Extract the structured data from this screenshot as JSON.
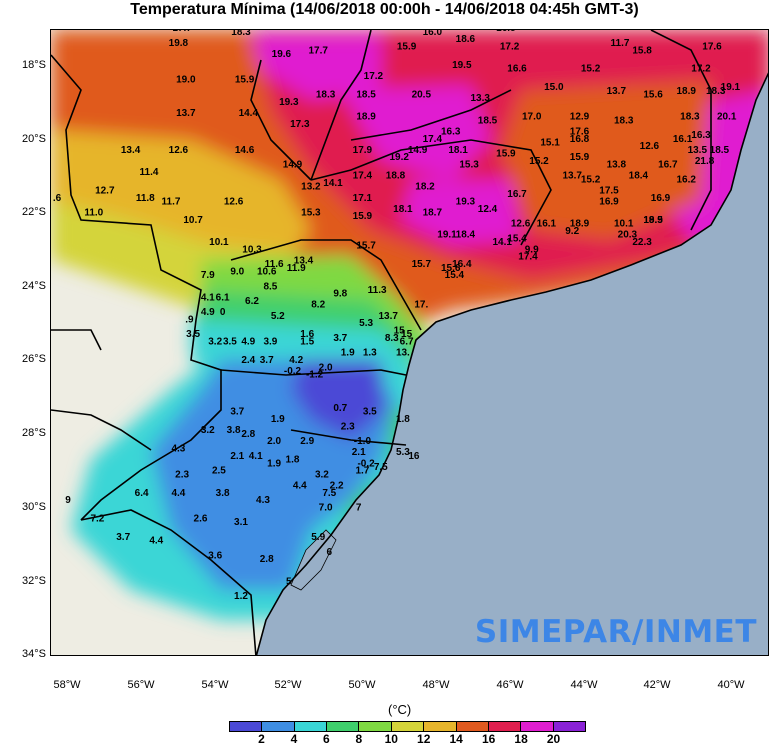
{
  "title": "Temperatura Mínima (14/06/2018 00:00h - 14/06/2018 04:45h GMT-3)",
  "watermark": "SIMEPAR/INMET",
  "unit_label": "(°C)",
  "lat_labels": [
    "18°S",
    "20°S",
    "22°S",
    "24°S",
    "26°S",
    "28°S",
    "30°S",
    "32°S",
    "34°S"
  ],
  "lon_labels": [
    "58°W",
    "56°W",
    "54°W",
    "52°W",
    "50°W",
    "48°W",
    "46°W",
    "44°W",
    "42°W",
    "40°W"
  ],
  "colorbar": {
    "colors": [
      "#4b49d6",
      "#3f8ee3",
      "#3ad6d6",
      "#3fcf6c",
      "#7fd942",
      "#d4d43a",
      "#e6b52c",
      "#e05a1f",
      "#e01f4f",
      "#e01ed0",
      "#8a22d6"
    ],
    "labels": [
      "2",
      "4",
      "6",
      "8",
      "10",
      "12",
      "14",
      "16",
      "18",
      "20"
    ]
  },
  "colors": {
    "ocean": "#98afc7",
    "land": "#eeede3",
    "lake": "#98afc7"
  },
  "observations": [
    {
      "v": "17.7",
      "lon": -54.9,
      "lat": -17.0
    },
    {
      "v": "18.3",
      "lon": -53.3,
      "lat": -17.1
    },
    {
      "v": "16.0",
      "lon": -48.1,
      "lat": -17.1
    },
    {
      "v": "16.8",
      "lon": -46.1,
      "lat": -17.0
    },
    {
      "v": "19.8",
      "lon": -55.0,
      "lat": -17.4
    },
    {
      "v": "18.6",
      "lon": -47.2,
      "lat": -17.3
    },
    {
      "v": "15.9",
      "lon": -48.8,
      "lat": -17.5
    },
    {
      "v": "17.7",
      "lon": -51.2,
      "lat": -17.6
    },
    {
      "v": "19.6",
      "lon": -52.2,
      "lat": -17.7
    },
    {
      "v": "17.2",
      "lon": -46.0,
      "lat": -17.5
    },
    {
      "v": "11.7",
      "lon": -43.0,
      "lat": -17.4
    },
    {
      "v": "15.8",
      "lon": -42.4,
      "lat": -17.6
    },
    {
      "v": "17.6",
      "lon": -40.5,
      "lat": -17.5
    },
    {
      "v": "19.5",
      "lon": -47.3,
      "lat": -18.0
    },
    {
      "v": "16.6",
      "lon": -45.8,
      "lat": -18.1
    },
    {
      "v": "15.2",
      "lon": -43.8,
      "lat": -18.1
    },
    {
      "v": "17.2",
      "lon": -40.8,
      "lat": -18.1
    },
    {
      "v": "19.0",
      "lon": -54.8,
      "lat": -18.4
    },
    {
      "v": "15.9",
      "lon": -53.2,
      "lat": -18.4
    },
    {
      "v": "17.2",
      "lon": -49.7,
      "lat": -18.3
    },
    {
      "v": "15.0",
      "lon": -44.8,
      "lat": -18.6
    },
    {
      "v": "13.7",
      "lon": -43.1,
      "lat": -18.7
    },
    {
      "v": "15.6",
      "lon": -42.1,
      "lat": -18.8
    },
    {
      "v": "18.9",
      "lon": -41.2,
      "lat": -18.7
    },
    {
      "v": "18.3",
      "lon": -40.4,
      "lat": -18.7
    },
    {
      "v": "19.1",
      "lon": -40.0,
      "lat": -18.6
    },
    {
      "v": "18.3",
      "lon": -51.0,
      "lat": -18.8
    },
    {
      "v": "18.5",
      "lon": -49.9,
      "lat": -18.8
    },
    {
      "v": "20.5",
      "lon": -48.4,
      "lat": -18.8
    },
    {
      "v": "13.3",
      "lon": -46.8,
      "lat": -18.9
    },
    {
      "v": "19.3",
      "lon": -52.0,
      "lat": -19.0
    },
    {
      "v": "13.7",
      "lon": -54.8,
      "lat": -19.3
    },
    {
      "v": "14.4",
      "lon": -53.1,
      "lat": -19.3
    },
    {
      "v": "18.9",
      "lon": -49.9,
      "lat": -19.4
    },
    {
      "v": "18.5",
      "lon": -46.6,
      "lat": -19.5
    },
    {
      "v": "17.0",
      "lon": -45.4,
      "lat": -19.4
    },
    {
      "v": "12.9",
      "lon": -44.1,
      "lat": -19.4
    },
    {
      "v": "18.3",
      "lon": -42.9,
      "lat": -19.5
    },
    {
      "v": "18.3",
      "lon": -41.1,
      "lat": -19.4
    },
    {
      "v": "20.1",
      "lon": -40.1,
      "lat": -19.4
    },
    {
      "v": "17.3",
      "lon": -51.7,
      "lat": -19.6
    },
    {
      "v": "17.6",
      "lon": -44.1,
      "lat": -19.8
    },
    {
      "v": "16.3",
      "lon": -47.6,
      "lat": -19.8
    },
    {
      "v": "17.4",
      "lon": -48.1,
      "lat": -20.0
    },
    {
      "v": "16.8",
      "lon": -44.1,
      "lat": -20.0
    },
    {
      "v": "15.1",
      "lon": -44.9,
      "lat": -20.1
    },
    {
      "v": "16.3",
      "lon": -40.8,
      "lat": -19.9
    },
    {
      "v": "16.1",
      "lon": -41.3,
      "lat": -20.0
    },
    {
      "v": "12.6",
      "lon": -42.2,
      "lat": -20.2
    },
    {
      "v": "13.5",
      "lon": -40.9,
      "lat": -20.3
    },
    {
      "v": "18.5",
      "lon": -40.3,
      "lat": -20.3
    },
    {
      "v": "13.4",
      "lon": -56.3,
      "lat": -20.3
    },
    {
      "v": "12.6",
      "lon": -55.0,
      "lat": -20.3
    },
    {
      "v": "14.6",
      "lon": -53.2,
      "lat": -20.3
    },
    {
      "v": "17.9",
      "lon": -50.0,
      "lat": -20.3
    },
    {
      "v": "14.9",
      "lon": -48.5,
      "lat": -20.3
    },
    {
      "v": "18.1",
      "lon": -47.4,
      "lat": -20.3
    },
    {
      "v": "19.2",
      "lon": -49.0,
      "lat": -20.5
    },
    {
      "v": "15.9",
      "lon": -46.1,
      "lat": -20.4
    },
    {
      "v": "15.2",
      "lon": -45.2,
      "lat": -20.6
    },
    {
      "v": "15.9",
      "lon": -44.1,
      "lat": -20.5
    },
    {
      "v": "13.8",
      "lon": -43.1,
      "lat": -20.7
    },
    {
      "v": "16.7",
      "lon": -41.7,
      "lat": -20.7
    },
    {
      "v": "21.8",
      "lon": -40.7,
      "lat": -20.6
    },
    {
      "v": "15.3",
      "lon": -47.1,
      "lat": -20.7
    },
    {
      "v": "14.9",
      "lon": -51.9,
      "lat": -20.7
    },
    {
      "v": "11.4",
      "lon": -55.8,
      "lat": -20.9
    },
    {
      "v": "17.4",
      "lon": -50.0,
      "lat": -21.0
    },
    {
      "v": "18.8",
      "lon": -49.1,
      "lat": -21.0
    },
    {
      "v": "13.7",
      "lon": -44.3,
      "lat": -21.0
    },
    {
      "v": "15.2",
      "lon": -43.8,
      "lat": -21.1
    },
    {
      "v": "18.4",
      "lon": -42.5,
      "lat": -21.0
    },
    {
      "v": "16.2",
      "lon": -41.2,
      "lat": -21.1
    },
    {
      "v": "14.1",
      "lon": -50.8,
      "lat": -21.2
    },
    {
      "v": "13.2",
      "lon": -51.4,
      "lat": -21.3
    },
    {
      "v": "18.2",
      "lon": -48.3,
      "lat": -21.3
    },
    {
      "v": "17.5",
      "lon": -43.3,
      "lat": -21.4
    },
    {
      "v": "12.7",
      "lon": -57.0,
      "lat": -21.4
    },
    {
      "v": "11.8",
      "lon": -55.9,
      "lat": -21.6
    },
    {
      "v": "11.7",
      "lon": -55.2,
      "lat": -21.7
    },
    {
      "v": "12.6",
      "lon": -53.5,
      "lat": -21.7
    },
    {
      "v": "17.1",
      "lon": -50.0,
      "lat": -21.6
    },
    {
      "v": "19.3",
      "lon": -47.2,
      "lat": -21.7
    },
    {
      "v": "16.7",
      "lon": -45.8,
      "lat": -21.5
    },
    {
      "v": "16.9",
      "lon": -43.3,
      "lat": -21.7
    },
    {
      "v": "16.9",
      "lon": -41.9,
      "lat": -21.6
    },
    {
      "v": "18.1",
      "lon": -48.9,
      "lat": -21.9
    },
    {
      "v": "18.7",
      "lon": -48.1,
      "lat": -22.0
    },
    {
      "v": "12.4",
      "lon": -46.6,
      "lat": -21.9
    },
    {
      "v": "18.5",
      "lon": -42.1,
      "lat": -22.2
    },
    {
      "v": ".6",
      "lon": -58.3,
      "lat": -21.6
    },
    {
      "v": "11.0",
      "lon": -57.3,
      "lat": -22.0
    },
    {
      "v": "10.7",
      "lon": -54.6,
      "lat": -22.2
    },
    {
      "v": "15.3",
      "lon": -51.4,
      "lat": -22.0
    },
    {
      "v": "15.9",
      "lon": -50.0,
      "lat": -22.1
    },
    {
      "v": "12.6",
      "lon": -45.7,
      "lat": -22.3
    },
    {
      "v": "16.1",
      "lon": -45.0,
      "lat": -22.3
    },
    {
      "v": "18.9",
      "lon": -44.1,
      "lat": -22.3
    },
    {
      "v": "10.1",
      "lon": -42.9,
      "lat": -22.3
    },
    {
      "v": "19.9",
      "lon": -42.1,
      "lat": -22.2
    },
    {
      "v": "9.2",
      "lon": -44.3,
      "lat": -22.5
    },
    {
      "v": "20.3",
      "lon": -42.8,
      "lat": -22.6
    },
    {
      "v": "22.3",
      "lon": -42.4,
      "lat": -22.8
    },
    {
      "v": "19.1",
      "lon": -47.7,
      "lat": -22.6
    },
    {
      "v": "18.4",
      "lon": -47.2,
      "lat": -22.6
    },
    {
      "v": "14.1",
      "lon": -46.2,
      "lat": -22.8
    },
    {
      "v": "15.4",
      "lon": -45.8,
      "lat": -22.7
    },
    {
      "v": "10.1",
      "lon": -53.9,
      "lat": -22.8
    },
    {
      "v": "10.3",
      "lon": -53.0,
      "lat": -23.0
    },
    {
      "v": "15.7",
      "lon": -49.9,
      "lat": -22.9
    },
    {
      "v": "9.9",
      "lon": -45.4,
      "lat": -23.0
    },
    {
      "v": "11.6",
      "lon": -52.4,
      "lat": -23.4
    },
    {
      "v": "13.4",
      "lon": -51.6,
      "lat": -23.3
    },
    {
      "v": "17.4",
      "lon": -45.5,
      "lat": -23.2
    },
    {
      "v": "15.7",
      "lon": -48.4,
      "lat": -23.4
    },
    {
      "v": "15.6",
      "lon": -47.6,
      "lat": -23.5
    },
    {
      "v": "16.4",
      "lon": -47.3,
      "lat": -23.4
    },
    {
      "v": "15.4",
      "lon": -47.5,
      "lat": -23.7
    },
    {
      "v": "7.9",
      "lon": -54.2,
      "lat": -23.7
    },
    {
      "v": "9.0",
      "lon": -53.4,
      "lat": -23.6
    },
    {
      "v": "10.6",
      "lon": -52.6,
      "lat": -23.6
    },
    {
      "v": "11.9",
      "lon": -51.8,
      "lat": -23.5
    },
    {
      "v": "8.5",
      "lon": -52.5,
      "lat": -24.0
    },
    {
      "v": "9.8",
      "lon": -50.6,
      "lat": -24.2
    },
    {
      "v": "11.3",
      "lon": -49.6,
      "lat": -24.1
    },
    {
      "v": "4.1",
      "lon": -54.2,
      "lat": -24.3
    },
    {
      "v": "6.1",
      "lon": -53.8,
      "lat": -24.3
    },
    {
      "v": "6.2",
      "lon": -53.0,
      "lat": -24.4
    },
    {
      "v": "8.2",
      "lon": -51.2,
      "lat": -24.5
    },
    {
      "v": "17.",
      "lon": -48.4,
      "lat": -24.5
    },
    {
      "v": "4.9",
      "lon": -54.2,
      "lat": -24.7
    },
    {
      "v": "0",
      "lon": -53.8,
      "lat": -24.7
    },
    {
      "v": "5.2",
      "lon": -52.3,
      "lat": -24.8
    },
    {
      "v": ".9",
      "lon": -54.7,
      "lat": -24.9
    },
    {
      "v": "13.7",
      "lon": -49.3,
      "lat": -24.8
    },
    {
      "v": "5.3",
      "lon": -49.9,
      "lat": -25.0
    },
    {
      "v": "15",
      "lon": -49.0,
      "lat": -25.2
    },
    {
      "v": "3.5",
      "lon": -54.6,
      "lat": -25.3
    },
    {
      "v": "1.6",
      "lon": -51.5,
      "lat": -25.3
    },
    {
      "v": "3.7",
      "lon": -50.6,
      "lat": -25.4
    },
    {
      "v": "8.3",
      "lon": -49.2,
      "lat": -25.4
    },
    {
      "v": "15",
      "lon": -48.8,
      "lat": -25.3
    },
    {
      "v": "3.2",
      "lon": -54.0,
      "lat": -25.5
    },
    {
      "v": "3.5",
      "lon": -53.6,
      "lat": -25.5
    },
    {
      "v": "4.9",
      "lon": -53.1,
      "lat": -25.5
    },
    {
      "v": "3.9",
      "lon": -52.5,
      "lat": -25.5
    },
    {
      "v": "1.5",
      "lon": -51.5,
      "lat": -25.5
    },
    {
      "v": "6.7",
      "lon": -48.8,
      "lat": -25.5
    },
    {
      "v": "1.9",
      "lon": -50.4,
      "lat": -25.8
    },
    {
      "v": "1.3",
      "lon": -49.8,
      "lat": -25.8
    },
    {
      "v": "13.",
      "lon": -48.9,
      "lat": -25.8
    },
    {
      "v": "2.4",
      "lon": -53.1,
      "lat": -26.0
    },
    {
      "v": "3.7",
      "lon": -52.6,
      "lat": -26.0
    },
    {
      "v": "4.2",
      "lon": -51.8,
      "lat": -26.0
    },
    {
      "v": "-0.2",
      "lon": -51.9,
      "lat": -26.3
    },
    {
      "v": "2.0",
      "lon": -51.0,
      "lat": -26.2
    },
    {
      "v": "-1.2",
      "lon": -51.3,
      "lat": -26.4
    },
    {
      "v": "0.7",
      "lon": -50.6,
      "lat": -27.3
    },
    {
      "v": "3.5",
      "lon": -49.8,
      "lat": -27.4
    },
    {
      "v": "3.7",
      "lon": -53.4,
      "lat": -27.4
    },
    {
      "v": "1.9",
      "lon": -52.3,
      "lat": -27.6
    },
    {
      "v": "1.8",
      "lon": -48.9,
      "lat": -27.6
    },
    {
      "v": "3.2",
      "lon": -54.2,
      "lat": -27.9
    },
    {
      "v": "3.8",
      "lon": -53.5,
      "lat": -27.9
    },
    {
      "v": "2.8",
      "lon": -53.1,
      "lat": -28.0
    },
    {
      "v": "2.3",
      "lon": -50.4,
      "lat": -27.8
    },
    {
      "v": "2.0",
      "lon": -52.4,
      "lat": -28.2
    },
    {
      "v": "2.9",
      "lon": -51.5,
      "lat": -28.2
    },
    {
      "v": "-1.0",
      "lon": -50.0,
      "lat": -28.2
    },
    {
      "v": "4.3",
      "lon": -55.0,
      "lat": -28.4
    },
    {
      "v": "2.1",
      "lon": -53.4,
      "lat": -28.6
    },
    {
      "v": "4.1",
      "lon": -52.9,
      "lat": -28.6
    },
    {
      "v": "2.1",
      "lon": -50.1,
      "lat": -28.5
    },
    {
      "v": "5.3",
      "lon": -48.9,
      "lat": -28.5
    },
    {
      "v": "1.8",
      "lon": -51.9,
      "lat": -28.7
    },
    {
      "v": "1.9",
      "lon": -52.4,
      "lat": -28.8
    },
    {
      "v": "-0.2",
      "lon": -49.9,
      "lat": -28.8
    },
    {
      "v": "16",
      "lon": -48.6,
      "lat": -28.6
    },
    {
      "v": "7.5",
      "lon": -49.5,
      "lat": -28.9
    },
    {
      "v": "1.7",
      "lon": -50.0,
      "lat": -29.0
    },
    {
      "v": "2.3",
      "lon": -54.9,
      "lat": -29.1
    },
    {
      "v": "2.5",
      "lon": -53.9,
      "lat": -29.0
    },
    {
      "v": "3.2",
      "lon": -51.1,
      "lat": -29.1
    },
    {
      "v": "4.4",
      "lon": -51.7,
      "lat": -29.4
    },
    {
      "v": "2.2",
      "lon": -50.7,
      "lat": -29.4
    },
    {
      "v": "6.4",
      "lon": -56.0,
      "lat": -29.6
    },
    {
      "v": "4.4",
      "lon": -55.0,
      "lat": -29.6
    },
    {
      "v": "3.8",
      "lon": -53.8,
      "lat": -29.6
    },
    {
      "v": "4.3",
      "lon": -52.7,
      "lat": -29.8
    },
    {
      "v": "7.5",
      "lon": -50.9,
      "lat": -29.6
    },
    {
      "v": "9",
      "lon": -58.0,
      "lat": -29.8
    },
    {
      "v": "7.0",
      "lon": -51.0,
      "lat": -30.0
    },
    {
      "v": "7",
      "lon": -50.1,
      "lat": -30.0
    },
    {
      "v": "7.2",
      "lon": -57.2,
      "lat": -30.3
    },
    {
      "v": "2.6",
      "lon": -54.4,
      "lat": -30.3
    },
    {
      "v": "3.1",
      "lon": -53.3,
      "lat": -30.4
    },
    {
      "v": "3.7",
      "lon": -56.5,
      "lat": -30.8
    },
    {
      "v": "4.4",
      "lon": -55.6,
      "lat": -30.9
    },
    {
      "v": "5.9",
      "lon": -51.2,
      "lat": -30.8
    },
    {
      "v": "3.6",
      "lon": -54.0,
      "lat": -31.3
    },
    {
      "v": "2.8",
      "lon": -52.6,
      "lat": -31.4
    },
    {
      "v": "6",
      "lon": -50.9,
      "lat": -31.2
    },
    {
      "v": "5",
      "lon": -52.0,
      "lat": -32.0
    },
    {
      "v": "1.2",
      "lon": -53.3,
      "lat": -32.4
    }
  ]
}
